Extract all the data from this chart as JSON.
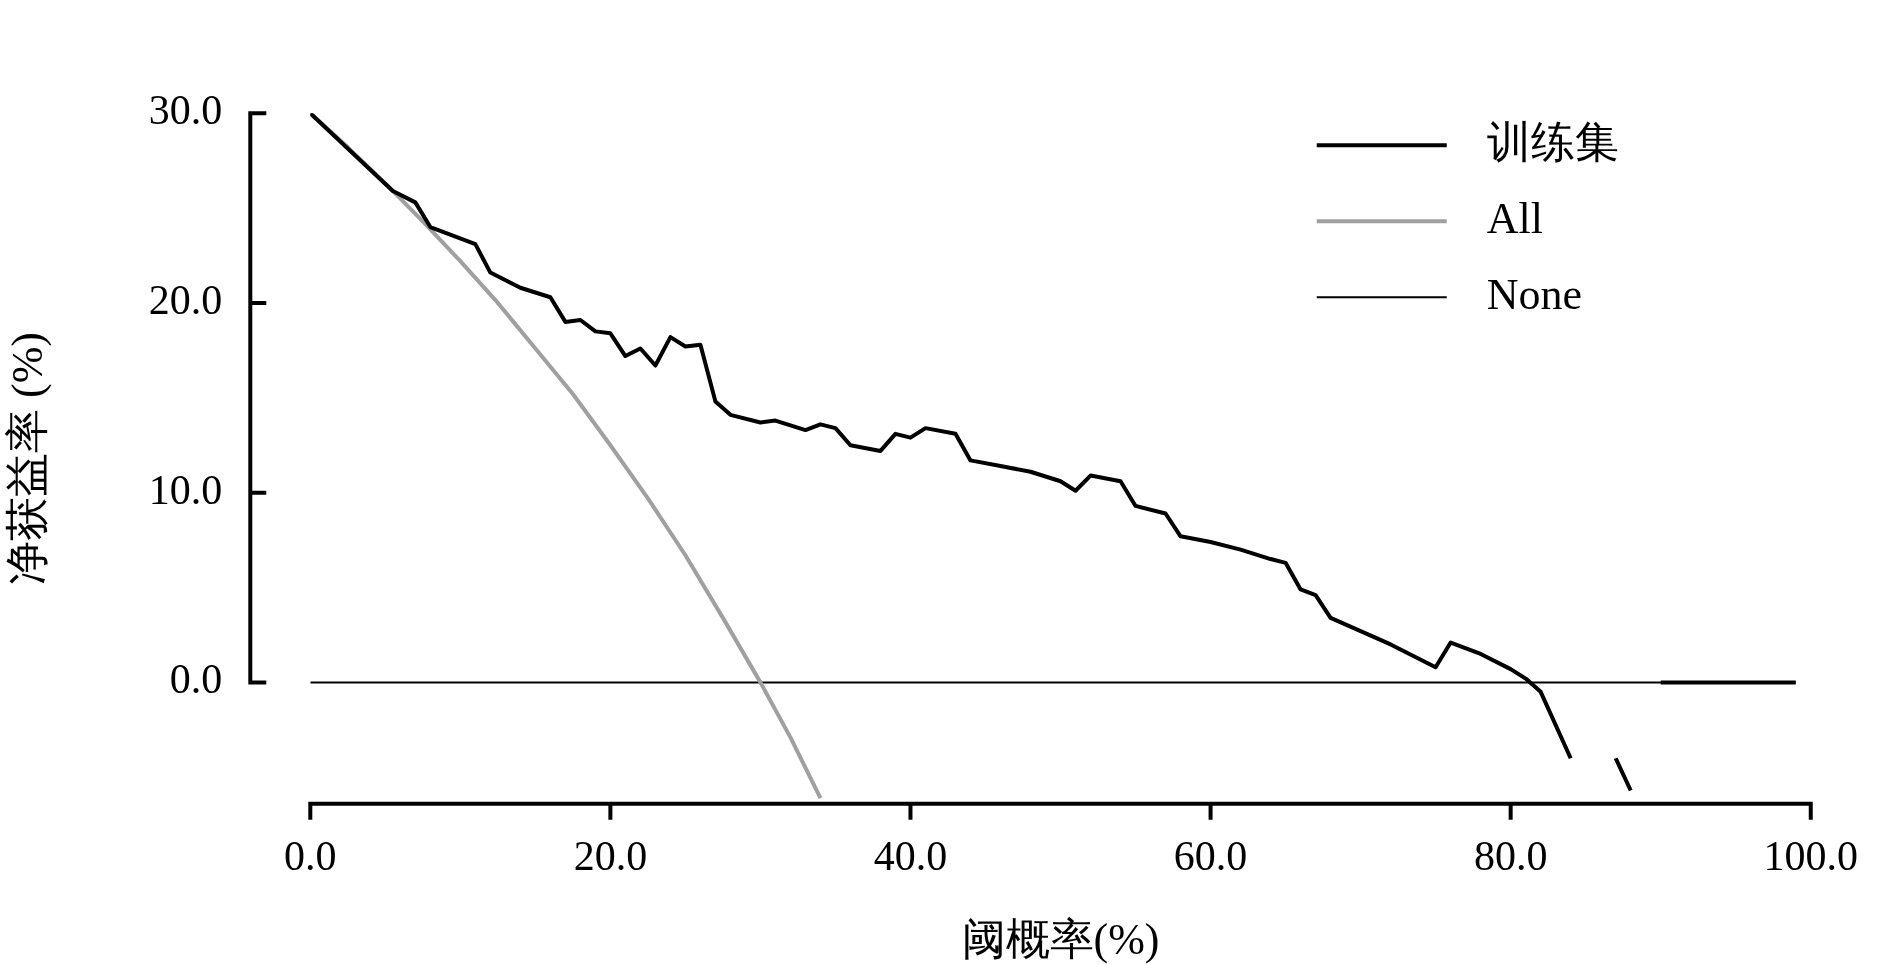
{
  "chart_data": {
    "type": "line",
    "xlabel": "阈概率(%)",
    "ylabel": "净获益率 (%)",
    "xlim": [
      0,
      100
    ],
    "ylim": [
      -6.4,
      30
    ],
    "xticks": [
      {
        "value": 0,
        "label": "0.0"
      },
      {
        "value": 20,
        "label": "20.0"
      },
      {
        "value": 40,
        "label": "40.0"
      },
      {
        "value": 60,
        "label": "60.0"
      },
      {
        "value": 80,
        "label": "80.0"
      },
      {
        "value": 100,
        "label": "100.0"
      }
    ],
    "yticks": [
      {
        "value": 0,
        "label": "0.0"
      },
      {
        "value": 10,
        "label": "10.0"
      },
      {
        "value": 20,
        "label": "20.0"
      },
      {
        "value": 30,
        "label": "30.0"
      }
    ],
    "legend": "top right",
    "series": [
      {
        "name": "训练集",
        "color": "#000000",
        "x": [
          0,
          5.5,
          7,
          8,
          11,
          12,
          14,
          16,
          17,
          18,
          19,
          20,
          21,
          22,
          23,
          24,
          25,
          26,
          27,
          28,
          30,
          31,
          33,
          34,
          35,
          36,
          38,
          39,
          40,
          41,
          43,
          44,
          46,
          48,
          50,
          51,
          52,
          54,
          55,
          57,
          58,
          60,
          62,
          64,
          65,
          66,
          67,
          68,
          70,
          72,
          75,
          76,
          78,
          80,
          81,
          82,
          84,
          85,
          86,
          87,
          88,
          89,
          90,
          99
        ],
        "values": [
          30,
          25.9,
          25.3,
          24.0,
          23.1,
          21.6,
          20.8,
          20.3,
          19.0,
          19.1,
          18.5,
          18.4,
          17.2,
          17.6,
          16.7,
          18.2,
          17.7,
          17.8,
          14.8,
          14.1,
          13.7,
          13.8,
          13.3,
          13.6,
          13.4,
          12.5,
          12.2,
          13.1,
          12.9,
          13.4,
          13.1,
          11.7,
          11.4,
          11.1,
          10.6,
          10.1,
          10.9,
          10.6,
          9.3,
          8.9,
          7.7,
          7.4,
          7.0,
          6.5,
          6.3,
          4.9,
          4.6,
          3.4,
          2.7,
          2.0,
          0.8,
          2.1,
          1.5,
          0.7,
          0.2,
          -0.5,
          -4.0,
          null,
          null,
          -4.0,
          -5.7,
          null,
          0,
          0
        ]
      },
      {
        "name": "All",
        "color": "#a0a0a0",
        "x": [
          0,
          2.5,
          5,
          7.5,
          10,
          12.5,
          15,
          17.5,
          20,
          22.5,
          25,
          27.5,
          30,
          32,
          34
        ],
        "values": [
          30,
          28.2,
          26.3,
          24.3,
          22.2,
          20.0,
          17.6,
          15.2,
          12.5,
          9.7,
          6.7,
          3.4,
          0,
          -2.9,
          -6.1
        ]
      },
      {
        "name": "None",
        "color": "#000000",
        "x": [
          0,
          99
        ],
        "values": [
          0,
          0
        ]
      }
    ]
  }
}
